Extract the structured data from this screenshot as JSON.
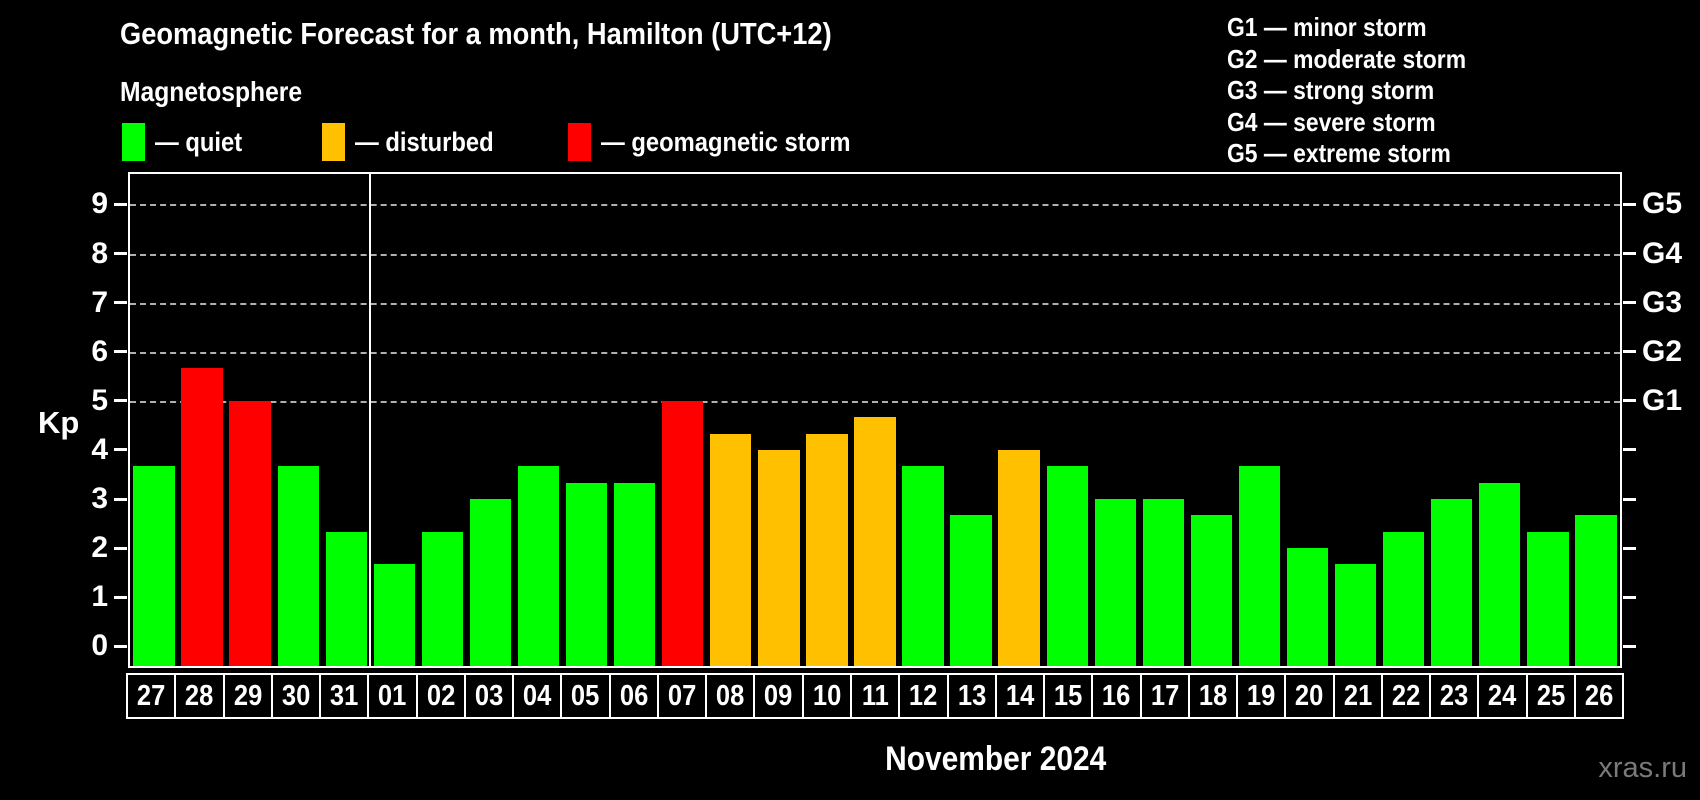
{
  "header": {
    "title": "Geomagnetic Forecast for a month, Hamilton (UTC+12)",
    "subtitle": "Magnetosphere"
  },
  "legend": {
    "items": [
      {
        "key": "quiet",
        "label": "— quiet"
      },
      {
        "key": "disturbed",
        "label": "— disturbed"
      },
      {
        "key": "storm",
        "label": "— geomagnetic storm"
      }
    ]
  },
  "storm_scale": [
    "G1 — minor storm",
    "G2 — moderate storm",
    "G3 — strong storm",
    "G4 — severe storm",
    "G5 — extreme storm"
  ],
  "status_colors": {
    "quiet": "#00ff00",
    "disturbed": "#ffc000",
    "storm": "#ff0000"
  },
  "watermark": "xras.ru",
  "chart_data": {
    "type": "bar",
    "title": "Geomagnetic Forecast for a month, Hamilton (UTC+12)",
    "xlabel": "November 2024",
    "ylabel": "Kp",
    "ylim": [
      0,
      9
    ],
    "y_ticks": [
      0,
      1,
      2,
      3,
      4,
      5,
      6,
      7,
      8,
      9
    ],
    "gridlines": [
      5,
      6,
      7,
      8,
      9
    ],
    "grid_style": "dashed",
    "legend_position": "top",
    "right_axis": [
      {
        "value": 5,
        "label": "G1"
      },
      {
        "value": 6,
        "label": "G2"
      },
      {
        "value": 7,
        "label": "G3"
      },
      {
        "value": 8,
        "label": "G4"
      },
      {
        "value": 9,
        "label": "G5"
      }
    ],
    "month_separator_index": 5,
    "categories": [
      "27",
      "28",
      "29",
      "30",
      "31",
      "01",
      "02",
      "03",
      "04",
      "05",
      "06",
      "07",
      "08",
      "09",
      "10",
      "11",
      "12",
      "13",
      "14",
      "15",
      "16",
      "17",
      "18",
      "19",
      "20",
      "21",
      "22",
      "23",
      "24",
      "25",
      "26"
    ],
    "values": [
      3.67,
      5.67,
      5.0,
      3.67,
      2.33,
      1.67,
      2.33,
      3.0,
      3.67,
      3.33,
      3.33,
      5.0,
      4.33,
      4.0,
      4.33,
      4.67,
      3.67,
      2.67,
      4.0,
      3.67,
      3.0,
      3.0,
      2.67,
      3.67,
      2.0,
      1.67,
      2.33,
      3.0,
      3.33,
      2.33,
      2.67
    ],
    "statuses": [
      "quiet",
      "storm",
      "storm",
      "quiet",
      "quiet",
      "quiet",
      "quiet",
      "quiet",
      "quiet",
      "quiet",
      "quiet",
      "storm",
      "disturbed",
      "disturbed",
      "disturbed",
      "disturbed",
      "quiet",
      "quiet",
      "disturbed",
      "quiet",
      "quiet",
      "quiet",
      "quiet",
      "quiet",
      "quiet",
      "quiet",
      "quiet",
      "quiet",
      "quiet",
      "quiet",
      "quiet"
    ]
  }
}
